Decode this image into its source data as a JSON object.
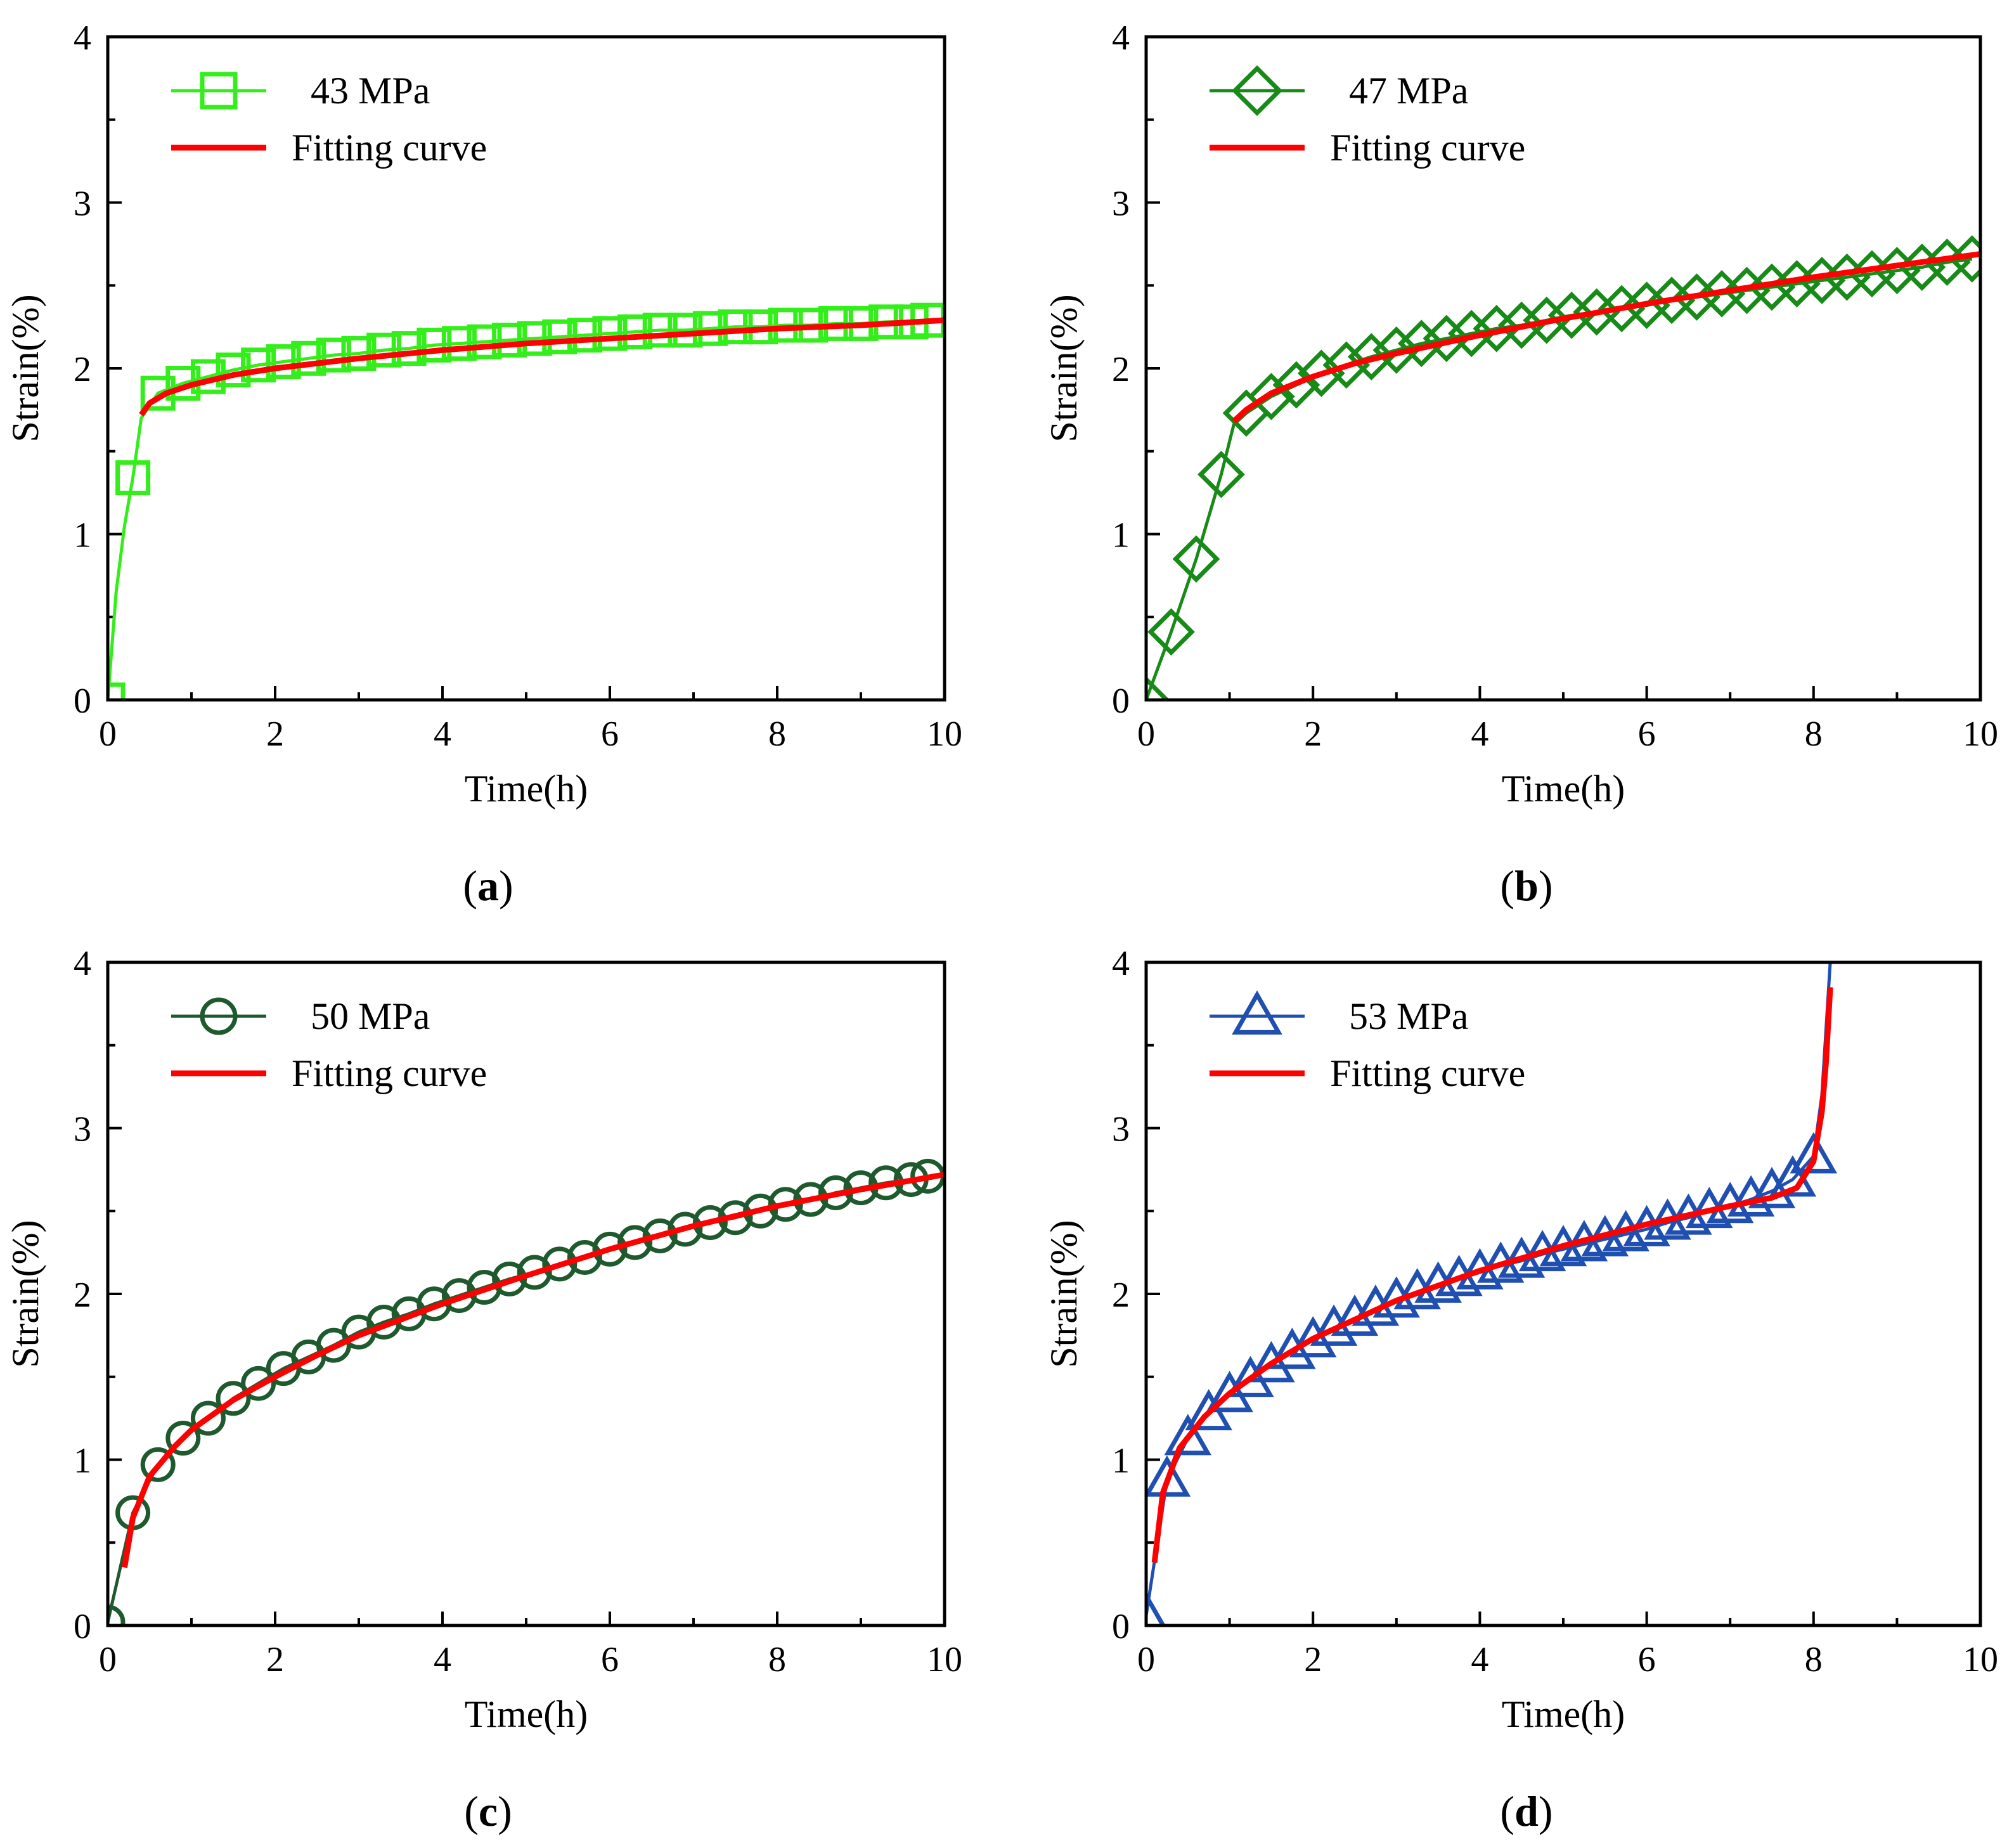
{
  "figure": {
    "panels": [
      "(a)",
      "(b)",
      "(c)",
      "(d)"
    ]
  },
  "chart_data": [
    {
      "type": "line",
      "panel_label": "a",
      "xlabel": "Time(h)",
      "ylabel": "Strain(%)",
      "xlim": [
        0,
        10
      ],
      "ylim": [
        0,
        4
      ],
      "xticks": [
        "0",
        "2",
        "4",
        "6",
        "8",
        "10"
      ],
      "yticks": [
        "0",
        "1",
        "2",
        "3",
        "4"
      ],
      "legend_position": "top-left",
      "series": [
        {
          "name": "43 MPa",
          "kind": "measured",
          "marker": "square",
          "color": "#33ee1a",
          "x": [
            0,
            0.1,
            0.2,
            0.3,
            0.4,
            0.6,
            0.9,
            1.2,
            1.5,
            1.8,
            2.1,
            2.4,
            2.7,
            3.0,
            3.3,
            3.6,
            3.9,
            4.2,
            4.5,
            4.8,
            5.1,
            5.4,
            5.7,
            6.0,
            6.3,
            6.6,
            6.9,
            7.2,
            7.5,
            7.8,
            8.1,
            8.4,
            8.7,
            9.0,
            9.3,
            9.6,
            9.8
          ],
          "y": [
            0,
            0.65,
            1.05,
            1.34,
            1.7,
            1.85,
            1.91,
            1.95,
            1.99,
            2.02,
            2.04,
            2.06,
            2.08,
            2.09,
            2.11,
            2.12,
            2.14,
            2.15,
            2.16,
            2.17,
            2.18,
            2.19,
            2.2,
            2.21,
            2.22,
            2.23,
            2.23,
            2.24,
            2.25,
            2.25,
            2.26,
            2.26,
            2.27,
            2.27,
            2.28,
            2.28,
            2.29
          ],
          "marker_x": [
            0,
            0.3,
            0.6,
            0.9,
            1.2,
            1.5,
            1.8,
            2.1,
            2.4,
            2.7,
            3.0,
            3.3,
            3.6,
            3.9,
            4.2,
            4.5,
            4.8,
            5.1,
            5.4,
            5.7,
            6.0,
            6.3,
            6.6,
            6.9,
            7.2,
            7.5,
            7.8,
            8.1,
            8.4,
            8.7,
            9.0,
            9.3,
            9.6,
            9.8
          ],
          "marker_y": [
            0,
            1.34,
            1.85,
            1.91,
            1.95,
            1.99,
            2.02,
            2.04,
            2.06,
            2.08,
            2.09,
            2.11,
            2.12,
            2.14,
            2.15,
            2.16,
            2.17,
            2.18,
            2.19,
            2.2,
            2.21,
            2.22,
            2.23,
            2.23,
            2.24,
            2.25,
            2.25,
            2.26,
            2.26,
            2.27,
            2.27,
            2.28,
            2.28,
            2.29
          ]
        },
        {
          "name": "Fitting curve",
          "kind": "fit",
          "color": "#ff0000",
          "x": [
            0.4,
            0.5,
            0.7,
            1.0,
            1.5,
            2.0,
            3.0,
            4.0,
            5.0,
            6.0,
            7.0,
            8.0,
            9.0,
            10.0
          ],
          "y": [
            1.72,
            1.79,
            1.85,
            1.9,
            1.96,
            2.0,
            2.06,
            2.11,
            2.15,
            2.18,
            2.21,
            2.24,
            2.26,
            2.29
          ]
        }
      ]
    },
    {
      "type": "line",
      "panel_label": "b",
      "xlabel": "Time(h)",
      "ylabel": "Strain(%)",
      "xlim": [
        0,
        10
      ],
      "ylim": [
        0,
        4
      ],
      "xticks": [
        "0",
        "2",
        "4",
        "6",
        "8",
        "10"
      ],
      "yticks": [
        "0",
        "1",
        "2",
        "3",
        "4"
      ],
      "legend_position": "top-left",
      "series": [
        {
          "name": "47 MPa",
          "kind": "measured",
          "marker": "diamond",
          "color": "#178a17",
          "x": [
            0,
            0.3,
            0.6,
            0.9,
            1.05,
            1.2,
            1.5,
            1.8,
            2.1,
            2.4,
            2.7,
            3.0,
            3.3,
            3.6,
            3.9,
            4.2,
            4.5,
            4.8,
            5.1,
            5.4,
            5.7,
            6.0,
            6.3,
            6.6,
            6.9,
            7.2,
            7.5,
            7.8,
            8.1,
            8.4,
            8.7,
            9.0,
            9.3,
            9.6,
            9.9
          ],
          "y": [
            0,
            0.41,
            0.85,
            1.36,
            1.66,
            1.73,
            1.83,
            1.9,
            1.97,
            2.02,
            2.07,
            2.11,
            2.15,
            2.18,
            2.21,
            2.24,
            2.26,
            2.29,
            2.32,
            2.34,
            2.36,
            2.38,
            2.41,
            2.43,
            2.45,
            2.47,
            2.49,
            2.51,
            2.53,
            2.55,
            2.57,
            2.59,
            2.61,
            2.64,
            2.66
          ],
          "marker_x": [
            0,
            0.3,
            0.6,
            0.9,
            1.2,
            1.5,
            1.8,
            2.1,
            2.4,
            2.7,
            3.0,
            3.3,
            3.6,
            3.9,
            4.2,
            4.5,
            4.8,
            5.1,
            5.4,
            5.7,
            6.0,
            6.3,
            6.6,
            6.9,
            7.2,
            7.5,
            7.8,
            8.1,
            8.4,
            8.7,
            9.0,
            9.3,
            9.6,
            9.9
          ],
          "marker_y": [
            0,
            0.41,
            0.85,
            1.36,
            1.73,
            1.83,
            1.9,
            1.97,
            2.02,
            2.07,
            2.11,
            2.15,
            2.18,
            2.21,
            2.24,
            2.26,
            2.29,
            2.32,
            2.34,
            2.36,
            2.38,
            2.41,
            2.43,
            2.45,
            2.47,
            2.49,
            2.51,
            2.53,
            2.55,
            2.57,
            2.59,
            2.61,
            2.64,
            2.66
          ]
        },
        {
          "name": "Fitting curve",
          "kind": "fit",
          "color": "#ff0000",
          "x": [
            1.05,
            1.2,
            1.5,
            2.0,
            2.5,
            3.0,
            4.0,
            5.0,
            6.0,
            7.0,
            8.0,
            9.0,
            10.0
          ],
          "y": [
            1.68,
            1.75,
            1.85,
            1.95,
            2.03,
            2.09,
            2.2,
            2.3,
            2.39,
            2.47,
            2.55,
            2.62,
            2.69
          ]
        }
      ]
    },
    {
      "type": "line",
      "panel_label": "c",
      "xlabel": "Time(h)",
      "ylabel": "Strain(%)",
      "xlim": [
        0,
        10
      ],
      "ylim": [
        0,
        4
      ],
      "xticks": [
        "0",
        "2",
        "4",
        "6",
        "8",
        "10"
      ],
      "yticks": [
        "0",
        "1",
        "2",
        "3",
        "4"
      ],
      "legend_position": "top-left",
      "series": [
        {
          "name": "50 MPa",
          "kind": "measured",
          "marker": "circle",
          "color": "#1e5a2e",
          "x": [
            0,
            0.3,
            0.6,
            0.9,
            1.2,
            1.5,
            1.8,
            2.1,
            2.4,
            2.7,
            3.0,
            3.3,
            3.6,
            3.9,
            4.2,
            4.5,
            4.8,
            5.1,
            5.4,
            5.7,
            6.0,
            6.3,
            6.6,
            6.9,
            7.2,
            7.5,
            7.8,
            8.1,
            8.4,
            8.7,
            9.0,
            9.3,
            9.6,
            9.8
          ],
          "y": [
            0.02,
            0.68,
            0.97,
            1.13,
            1.25,
            1.37,
            1.46,
            1.55,
            1.62,
            1.69,
            1.77,
            1.83,
            1.88,
            1.94,
            1.99,
            2.04,
            2.09,
            2.13,
            2.18,
            2.22,
            2.27,
            2.31,
            2.35,
            2.39,
            2.43,
            2.46,
            2.5,
            2.54,
            2.57,
            2.61,
            2.64,
            2.67,
            2.69,
            2.71
          ]
        },
        {
          "name": "Fitting curve",
          "kind": "fit",
          "color": "#ff0000",
          "x": [
            0.2,
            0.3,
            0.5,
            0.8,
            1.0,
            1.5,
            2.0,
            2.5,
            3.0,
            4.0,
            5.0,
            6.0,
            7.0,
            8.0,
            9.0,
            10.0
          ],
          "y": [
            0.35,
            0.65,
            0.9,
            1.08,
            1.18,
            1.36,
            1.5,
            1.63,
            1.75,
            1.94,
            2.11,
            2.27,
            2.41,
            2.53,
            2.63,
            2.72
          ]
        }
      ]
    },
    {
      "type": "line",
      "panel_label": "d",
      "xlabel": "Time(h)",
      "ylabel": "Strain(%)",
      "xlim": [
        0,
        10
      ],
      "ylim": [
        0,
        4
      ],
      "xticks": [
        "0",
        "2",
        "4",
        "6",
        "8",
        "10"
      ],
      "yticks": [
        "0",
        "1",
        "2",
        "3",
        "4"
      ],
      "legend_position": "top-left",
      "series": [
        {
          "name": "53 MPa",
          "kind": "measured",
          "marker": "triangle",
          "color": "#1f4fb0",
          "x": [
            0,
            0.25,
            0.5,
            0.75,
            1.0,
            1.25,
            1.5,
            1.75,
            2.0,
            2.25,
            2.5,
            2.75,
            3.0,
            3.25,
            3.5,
            3.75,
            4.0,
            4.25,
            4.5,
            4.75,
            5.0,
            5.25,
            5.5,
            5.75,
            6.0,
            6.25,
            6.5,
            6.75,
            7.0,
            7.25,
            7.5,
            7.75,
            8.0,
            8.1,
            8.15,
            8.2
          ],
          "y": [
            0.06,
            0.88,
            1.13,
            1.28,
            1.39,
            1.48,
            1.57,
            1.65,
            1.72,
            1.79,
            1.85,
            1.91,
            1.96,
            2.01,
            2.05,
            2.09,
            2.13,
            2.17,
            2.2,
            2.24,
            2.27,
            2.3,
            2.33,
            2.36,
            2.39,
            2.43,
            2.46,
            2.5,
            2.53,
            2.57,
            2.62,
            2.69,
            2.83,
            3.2,
            3.6,
            4.0
          ],
          "marker_x": [
            0,
            0.25,
            0.5,
            0.75,
            1.0,
            1.25,
            1.5,
            1.75,
            2.0,
            2.25,
            2.5,
            2.75,
            3.0,
            3.25,
            3.5,
            3.75,
            4.0,
            4.25,
            4.5,
            4.75,
            5.0,
            5.25,
            5.5,
            5.75,
            6.0,
            6.25,
            6.5,
            6.75,
            7.0,
            7.25,
            7.5,
            7.75,
            8.0
          ],
          "marker_y": [
            0.06,
            0.88,
            1.13,
            1.28,
            1.39,
            1.48,
            1.57,
            1.65,
            1.72,
            1.79,
            1.85,
            1.91,
            1.96,
            2.01,
            2.05,
            2.09,
            2.13,
            2.17,
            2.2,
            2.24,
            2.27,
            2.3,
            2.33,
            2.36,
            2.39,
            2.43,
            2.46,
            2.5,
            2.53,
            2.57,
            2.62,
            2.69,
            2.83
          ]
        },
        {
          "name": "Fitting curve",
          "kind": "fit",
          "color": "#ff0000",
          "x": [
            0.1,
            0.2,
            0.4,
            0.7,
            1.0,
            1.5,
            2.0,
            3.0,
            4.0,
            5.0,
            6.0,
            7.0,
            7.5,
            7.8,
            8.0,
            8.1,
            8.15,
            8.2
          ],
          "y": [
            0.38,
            0.8,
            1.07,
            1.26,
            1.4,
            1.58,
            1.73,
            1.96,
            2.14,
            2.29,
            2.42,
            2.53,
            2.58,
            2.64,
            2.8,
            3.1,
            3.4,
            3.85
          ]
        }
      ]
    }
  ]
}
